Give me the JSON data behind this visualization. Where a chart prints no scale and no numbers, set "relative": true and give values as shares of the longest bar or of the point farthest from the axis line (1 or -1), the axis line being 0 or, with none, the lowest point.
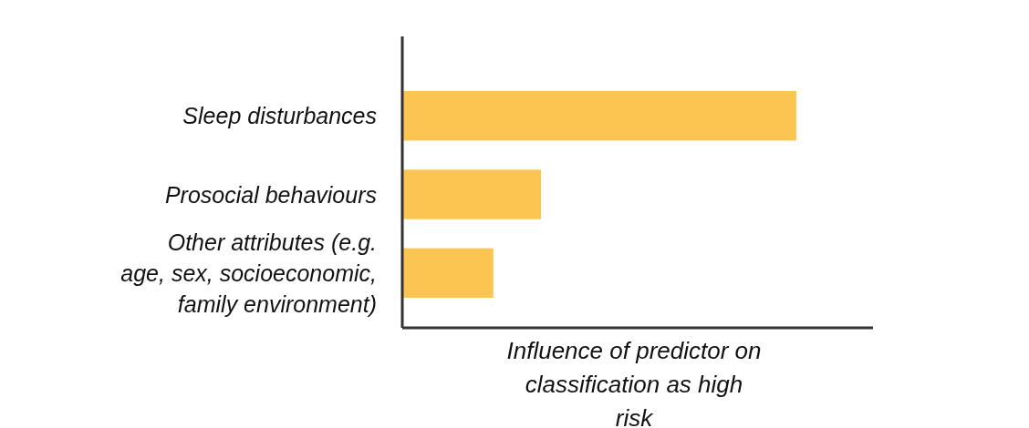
{
  "chart_data": {
    "type": "bar",
    "orientation": "horizontal",
    "relative": true,
    "categories": [
      "Sleep disturbances",
      "Prosocial behaviours",
      "Other attributes (e.g. age, sex, socioeconomic, family environment)"
    ],
    "values": [
      1,
      0.352,
      0.231
    ],
    "color": "#fcc450",
    "xlabel": "Influence of predictor on classification as high risk"
  }
}
